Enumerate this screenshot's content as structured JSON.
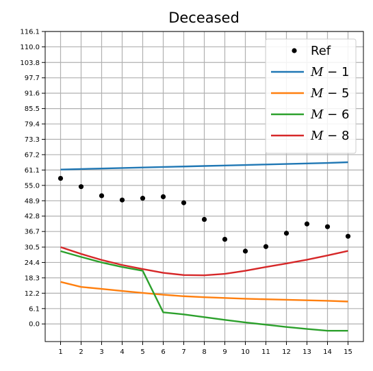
{
  "chart_data": {
    "type": "line",
    "title": "Deceased",
    "xlabel": "",
    "ylabel": "",
    "x": [
      1,
      2,
      3,
      4,
      5,
      6,
      7,
      8,
      9,
      10,
      11,
      12,
      13,
      14,
      15
    ],
    "xlim": [
      0.25,
      15.75
    ],
    "ylim": [
      -7,
      116.1
    ],
    "yticks": [
      0.0,
      6.1,
      12.2,
      18.3,
      24.4,
      30.5,
      36.7,
      42.8,
      48.9,
      55.0,
      61.1,
      67.2,
      73.3,
      79.4,
      85.5,
      91.6,
      97.7,
      103.8,
      110.0,
      116.1
    ],
    "ytick_labels": [
      "0.0",
      "6.1",
      "12.2",
      "18.3",
      "24.4",
      "30.5",
      "36.7",
      "42.8",
      "48.9",
      "55.0",
      "61.1",
      "67.2",
      "73.3",
      "79.4",
      "85.5",
      "91.6",
      "97.7",
      "103.8",
      "110.0",
      "116.1"
    ],
    "xtick_labels": [
      "1",
      "2",
      "3",
      "4",
      "5",
      "6",
      "7",
      "8",
      "9",
      "10",
      "11",
      "12",
      "13",
      "14",
      "15"
    ],
    "grid": true,
    "legend_position": "top-right",
    "series": [
      {
        "name": "Ref",
        "legend_main": "Ref",
        "legend_suffix": "",
        "kind": "scatter",
        "color": "#000000",
        "values": [
          57.8,
          54.5,
          50.9,
          49.2,
          49.9,
          50.5,
          48.1,
          41.5,
          33.6,
          28.9,
          30.7,
          36.0,
          39.7,
          38.6,
          34.8
        ]
      },
      {
        "name": "M-1",
        "legend_main": "M",
        "legend_suffix": " − 1",
        "kind": "line",
        "color": "#1f77b4",
        "values": [
          61.3,
          61.5,
          61.7,
          61.9,
          62.1,
          62.3,
          62.5,
          62.7,
          62.9,
          63.1,
          63.3,
          63.5,
          63.7,
          63.9,
          64.2
        ]
      },
      {
        "name": "M-5",
        "legend_main": "M",
        "legend_suffix": " − 5",
        "kind": "line",
        "color": "#ff7f0e",
        "values": [
          16.7,
          14.7,
          13.9,
          13.1,
          12.3,
          11.6,
          11.0,
          10.6,
          10.3,
          10.0,
          9.8,
          9.6,
          9.4,
          9.2,
          8.9
        ]
      },
      {
        "name": "M-6",
        "legend_main": "M",
        "legend_suffix": " − 6",
        "kind": "line",
        "color": "#2ca02c",
        "values": [
          28.9,
          26.6,
          24.4,
          22.6,
          21.1,
          4.6,
          3.8,
          2.7,
          1.6,
          0.6,
          -0.3,
          -1.2,
          -2.0,
          -2.7,
          -2.7
        ]
      },
      {
        "name": "M-8",
        "legend_main": "M",
        "legend_suffix": " − 8",
        "kind": "line",
        "color": "#d62728",
        "values": [
          30.5,
          27.8,
          25.4,
          23.4,
          21.8,
          20.3,
          19.4,
          19.3,
          19.9,
          21.1,
          22.6,
          24.0,
          25.5,
          27.2,
          29.0
        ]
      }
    ]
  }
}
